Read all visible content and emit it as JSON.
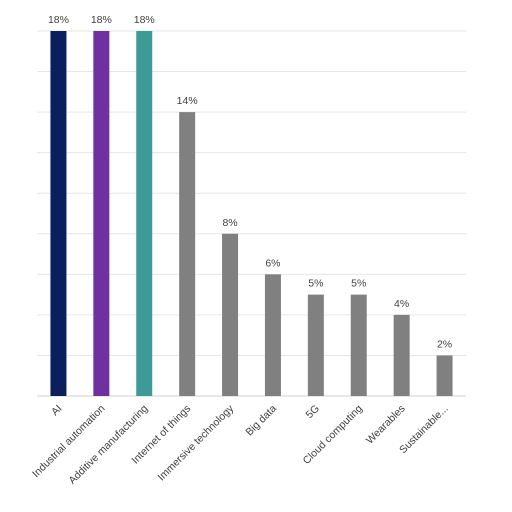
{
  "chart_data": {
    "type": "bar",
    "title": "",
    "xlabel": "",
    "ylabel": "",
    "ylim": [
      0,
      18
    ],
    "grid": true,
    "legend": "none",
    "value_suffix": "%",
    "categories": [
      "AI",
      "Industrial automation",
      "Additive manufacturing",
      "Internet of things",
      "Immersive technology",
      "Big data",
      "5G",
      "Cloud computing",
      "Wearables",
      "Sustainable..."
    ],
    "values": [
      18,
      18,
      18,
      14,
      8,
      6,
      5,
      5,
      4,
      2
    ],
    "data_labels": [
      "18%",
      "18%",
      "18%",
      "14%",
      "8%",
      "6%",
      "5%",
      "5%",
      "4%",
      "2%"
    ],
    "colors": [
      "#0b1f5c",
      "#7030a0",
      "#3e9a96",
      "#808080",
      "#808080",
      "#808080",
      "#808080",
      "#808080",
      "#808080",
      "#808080"
    ],
    "gridline_color": "#e6e6e6",
    "axis_color": "#d0d0d0"
  }
}
